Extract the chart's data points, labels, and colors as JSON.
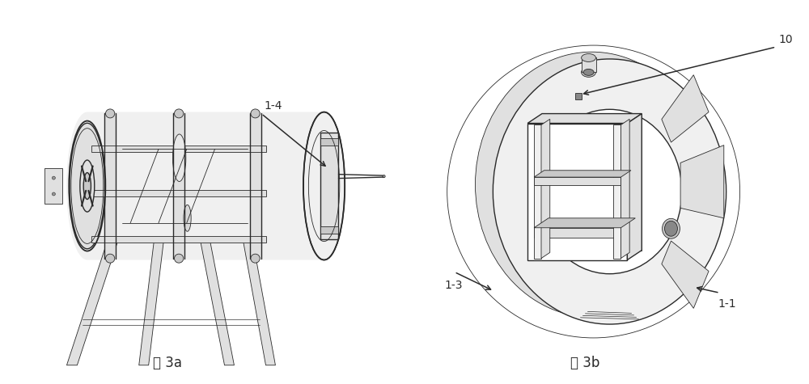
{
  "background_color": "#ffffff",
  "fig_width": 10.0,
  "fig_height": 4.75,
  "dpi": 100,
  "caption_3a": "图 3a",
  "caption_3b": "图 3b",
  "label_1_4": "1-4",
  "label_1_3": "1-3",
  "label_1_1": "1-1",
  "label_10": "10",
  "lc": "#2a2a2a",
  "lc_light": "#555555",
  "fill_light": "#f0f0f0",
  "fill_mid": "#e0e0e0",
  "fill_dark": "#c8c8c8",
  "fill_white": "#ffffff"
}
